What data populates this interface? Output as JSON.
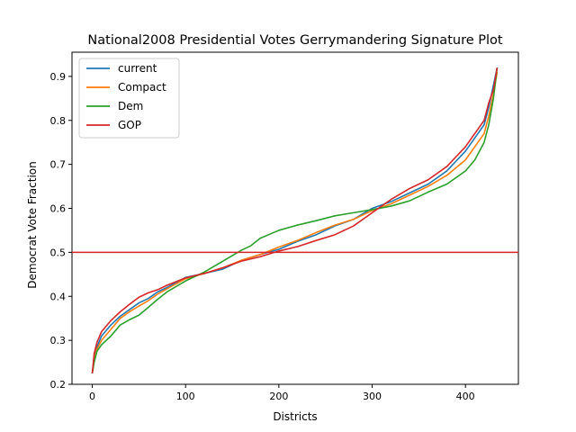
{
  "chart_data": {
    "type": "line",
    "title": "National2008 Presidential Votes Gerrymandering Signature Plot",
    "xlabel": "Districts",
    "ylabel": "Democrat Vote Fraction",
    "xlim": [
      -21.75,
      456.75
    ],
    "ylim": [
      0.2,
      0.955
    ],
    "xticks": [
      0,
      100,
      200,
      300,
      400
    ],
    "yticks": [
      0.2,
      0.3,
      0.4,
      0.5,
      0.6,
      0.7,
      0.8,
      0.9
    ],
    "xtick_labels": [
      "0",
      "100",
      "200",
      "300",
      "400"
    ],
    "ytick_labels": [
      "0.2",
      "0.3",
      "0.4",
      "0.5",
      "0.6",
      "0.7",
      "0.8",
      "0.9"
    ],
    "grid": false,
    "legend_position": "top-left",
    "hline": {
      "y": 0.5,
      "color": "#d62728"
    },
    "series": [
      {
        "name": "current",
        "color": "#1f77b4",
        "x": [
          0,
          2,
          5,
          10,
          20,
          30,
          40,
          50,
          60,
          70,
          80,
          100,
          120,
          140,
          160,
          180,
          200,
          220,
          240,
          260,
          280,
          300,
          320,
          340,
          360,
          380,
          400,
          410,
          420,
          425,
          430,
          434
        ],
        "y": [
          0.225,
          0.26,
          0.285,
          0.31,
          0.335,
          0.355,
          0.37,
          0.385,
          0.395,
          0.41,
          0.42,
          0.443,
          0.452,
          0.462,
          0.482,
          0.495,
          0.507,
          0.525,
          0.54,
          0.56,
          0.575,
          0.6,
          0.615,
          0.635,
          0.655,
          0.685,
          0.73,
          0.76,
          0.79,
          0.83,
          0.88,
          0.92
        ]
      },
      {
        "name": "Compact",
        "color": "#ff7f0e",
        "x": [
          0,
          2,
          5,
          10,
          20,
          30,
          40,
          50,
          60,
          70,
          80,
          100,
          120,
          140,
          160,
          180,
          200,
          220,
          240,
          260,
          280,
          300,
          320,
          340,
          360,
          380,
          400,
          410,
          420,
          425,
          430,
          434
        ],
        "y": [
          0.225,
          0.255,
          0.28,
          0.3,
          0.325,
          0.35,
          0.365,
          0.378,
          0.39,
          0.405,
          0.417,
          0.44,
          0.452,
          0.465,
          0.482,
          0.495,
          0.512,
          0.527,
          0.545,
          0.562,
          0.575,
          0.595,
          0.61,
          0.63,
          0.65,
          0.675,
          0.71,
          0.74,
          0.77,
          0.81,
          0.86,
          0.91
        ]
      },
      {
        "name": "Dem",
        "color": "#2ca02c",
        "x": [
          0,
          2,
          5,
          10,
          20,
          30,
          40,
          50,
          60,
          70,
          80,
          100,
          120,
          140,
          160,
          170,
          180,
          200,
          220,
          240,
          260,
          280,
          300,
          320,
          340,
          360,
          380,
          400,
          410,
          420,
          425,
          430,
          434
        ],
        "y": [
          0.225,
          0.25,
          0.275,
          0.29,
          0.31,
          0.335,
          0.347,
          0.357,
          0.375,
          0.393,
          0.41,
          0.435,
          0.455,
          0.48,
          0.505,
          0.515,
          0.532,
          0.55,
          0.562,
          0.572,
          0.583,
          0.59,
          0.597,
          0.605,
          0.617,
          0.637,
          0.655,
          0.685,
          0.71,
          0.75,
          0.79,
          0.85,
          0.92
        ]
      },
      {
        "name": "GOP",
        "color": "#d62728",
        "x": [
          0,
          2,
          5,
          10,
          20,
          30,
          40,
          50,
          60,
          70,
          80,
          100,
          120,
          140,
          160,
          180,
          200,
          220,
          240,
          260,
          280,
          300,
          320,
          340,
          360,
          380,
          400,
          410,
          420,
          425,
          430,
          434
        ],
        "y": [
          0.225,
          0.27,
          0.295,
          0.32,
          0.345,
          0.365,
          0.382,
          0.398,
          0.408,
          0.415,
          0.425,
          0.442,
          0.452,
          0.465,
          0.48,
          0.49,
          0.503,
          0.513,
          0.527,
          0.54,
          0.56,
          0.59,
          0.62,
          0.645,
          0.665,
          0.695,
          0.74,
          0.77,
          0.8,
          0.84,
          0.87,
          0.92
        ]
      }
    ]
  }
}
